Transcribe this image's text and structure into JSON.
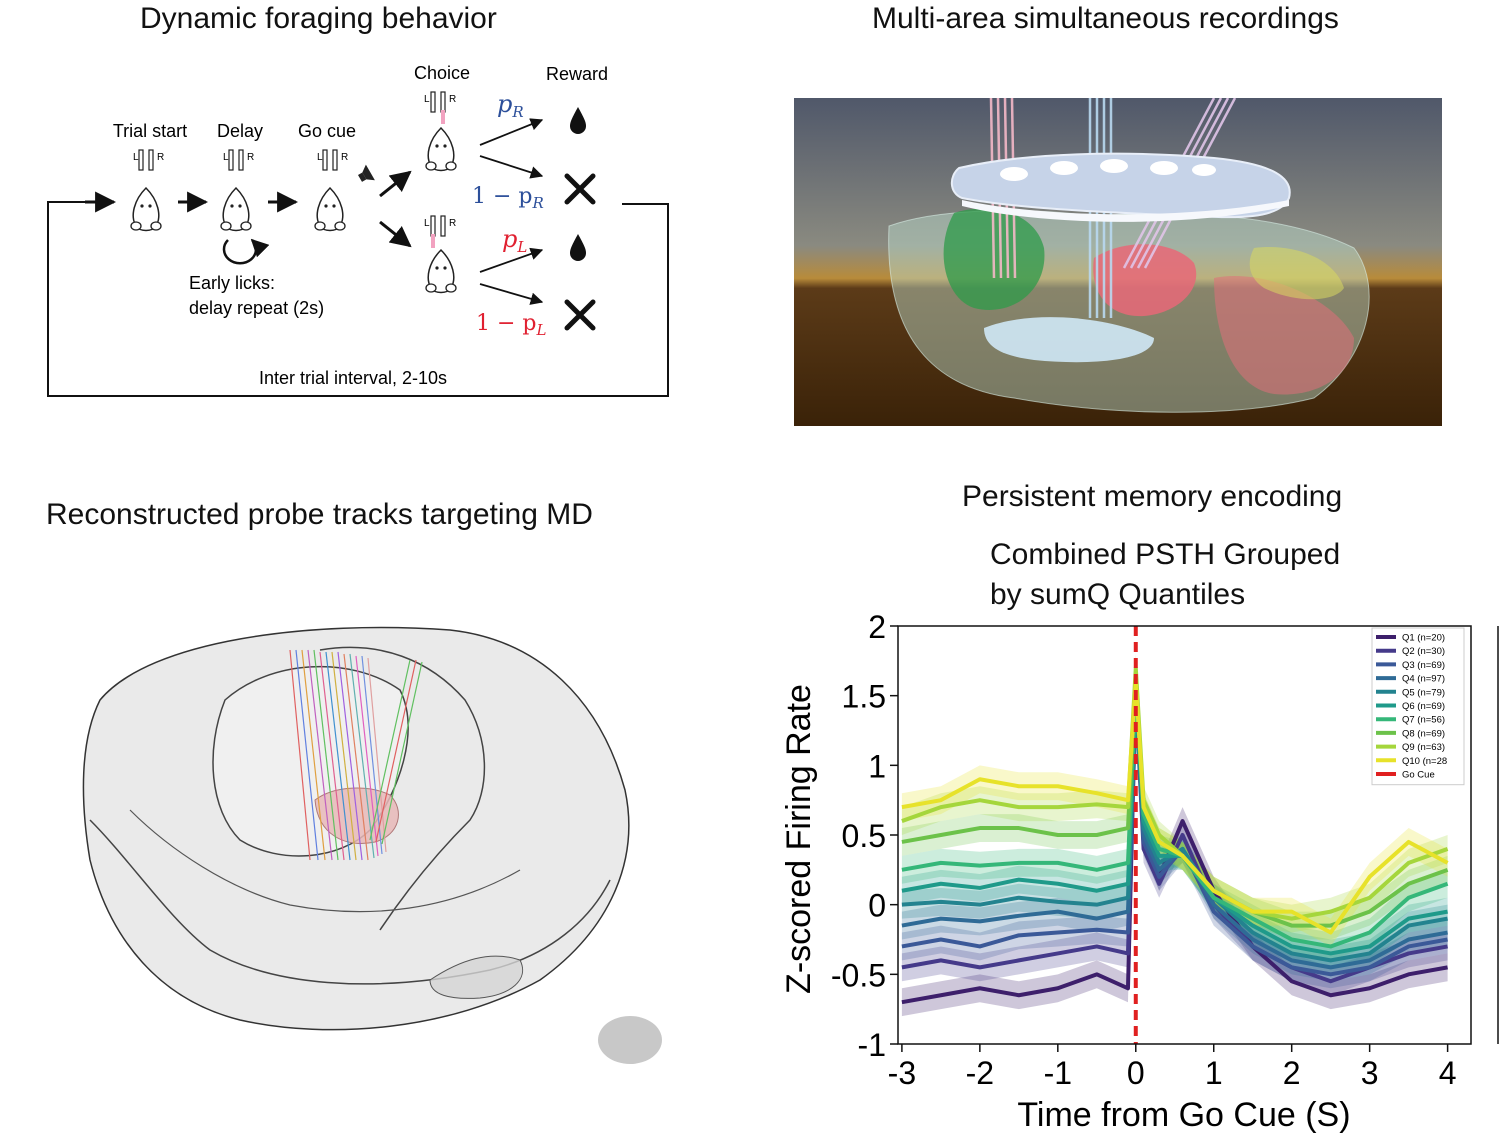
{
  "panels": {
    "behavior": {
      "title": "Dynamic foraging behavior",
      "stages": [
        "Trial start",
        "Delay",
        "Go cue"
      ],
      "choice_label": "Choice",
      "reward_label": "Reward",
      "spout_left": "L",
      "spout_right": "R",
      "early_licks_line1": "Early licks:",
      "early_licks_line2": "delay repeat (2s)",
      "iti": "Inter trial interval, 2-10s",
      "p_r_symbol": "p",
      "p_r_sub": "R",
      "one_minus_pr": "1 − p",
      "p_l_symbol": "p",
      "p_l_sub": "L",
      "one_minus_pl": "1 − p",
      "color_right": "#2c4f9a",
      "color_left": "#e02030"
    },
    "recording": {
      "title": "Multi-area simultaneous recordings"
    },
    "probe": {
      "title": "Reconstructed probe tracks targeting MD"
    },
    "psth": {
      "title": "Persistent memory encoding",
      "subtitle_line1": "Combined PSTH Grouped",
      "subtitle_line2": "by sumQ Quantiles"
    }
  },
  "chart_data": {
    "type": "line",
    "title": "Combined PSTH Grouped by sumQ Quantiles",
    "xlabel": "Time from Go Cue (S)",
    "ylabel": "Z-scored Firing Rate",
    "xlim": [
      -3.05,
      4.3
    ],
    "ylim": [
      -1,
      2
    ],
    "xticks": [
      "-3",
      "-2",
      "-1",
      "0",
      "1",
      "2",
      "3",
      "4"
    ],
    "yticks": [
      "2",
      "1.5",
      "1",
      "0.5",
      "0",
      "-0.5",
      "-1"
    ],
    "grid": false,
    "legend_position": "top-right",
    "x": [
      -3,
      -2.5,
      -2,
      -1.5,
      -1,
      -0.5,
      -0.1,
      0,
      0.1,
      0.3,
      0.6,
      1,
      1.5,
      2,
      2.5,
      3,
      3.5,
      4
    ],
    "series": [
      {
        "name": "Q1 (n=20)",
        "color": "#3d1f6b",
        "values": [
          -0.7,
          -0.65,
          -0.6,
          -0.65,
          -0.6,
          -0.5,
          -0.6,
          1.6,
          0.5,
          0.2,
          0.6,
          0.1,
          -0.3,
          -0.55,
          -0.65,
          -0.6,
          -0.5,
          -0.45
        ]
      },
      {
        "name": "Q2 (n=30)",
        "color": "#453a8a",
        "values": [
          -0.45,
          -0.4,
          -0.45,
          -0.4,
          -0.35,
          -0.3,
          -0.35,
          1.5,
          0.4,
          0.15,
          0.5,
          0.0,
          -0.3,
          -0.45,
          -0.55,
          -0.45,
          -0.35,
          -0.3
        ]
      },
      {
        "name": "Q3 (n=69)",
        "color": "#3b5998",
        "values": [
          -0.3,
          -0.25,
          -0.3,
          -0.22,
          -0.2,
          -0.18,
          -0.2,
          1.5,
          0.45,
          0.2,
          0.4,
          -0.05,
          -0.3,
          -0.45,
          -0.5,
          -0.45,
          -0.3,
          -0.25
        ]
      },
      {
        "name": "Q4 (n=97)",
        "color": "#2f6b96",
        "values": [
          -0.15,
          -0.1,
          -0.12,
          -0.08,
          -0.05,
          -0.1,
          -0.05,
          1.5,
          0.5,
          0.25,
          0.4,
          0.0,
          -0.25,
          -0.4,
          -0.45,
          -0.4,
          -0.25,
          -0.2
        ]
      },
      {
        "name": "Q5 (n=79)",
        "color": "#23838f",
        "values": [
          0.0,
          0.02,
          0.0,
          0.05,
          0.02,
          0.0,
          0.05,
          1.55,
          0.55,
          0.3,
          0.4,
          0.05,
          -0.2,
          -0.35,
          -0.4,
          -0.35,
          -0.15,
          -0.1
        ]
      },
      {
        "name": "Q6 (n=69)",
        "color": "#1f9a8a",
        "values": [
          0.1,
          0.15,
          0.12,
          0.18,
          0.15,
          0.1,
          0.15,
          1.55,
          0.6,
          0.35,
          0.35,
          0.05,
          -0.15,
          -0.3,
          -0.35,
          -0.3,
          -0.1,
          -0.05
        ]
      },
      {
        "name": "Q7 (n=56)",
        "color": "#35b779",
        "values": [
          0.25,
          0.3,
          0.28,
          0.3,
          0.3,
          0.25,
          0.3,
          1.6,
          0.65,
          0.4,
          0.35,
          0.05,
          -0.1,
          -0.25,
          -0.3,
          -0.2,
          0.05,
          0.15
        ]
      },
      {
        "name": "Q8 (n=69)",
        "color": "#6cc24a",
        "values": [
          0.45,
          0.5,
          0.55,
          0.55,
          0.5,
          0.5,
          0.55,
          1.65,
          0.7,
          0.45,
          0.35,
          0.1,
          -0.05,
          -0.15,
          -0.15,
          -0.05,
          0.15,
          0.25
        ]
      },
      {
        "name": "Q9 (n=63)",
        "color": "#a5d63c",
        "values": [
          0.6,
          0.7,
          0.75,
          0.7,
          0.7,
          0.72,
          0.7,
          1.7,
          0.75,
          0.5,
          0.35,
          0.1,
          -0.05,
          -0.1,
          -0.05,
          0.05,
          0.3,
          0.4
        ]
      },
      {
        "name": "Q10 (n=28",
        "color": "#e7e22a",
        "values": [
          0.7,
          0.75,
          0.9,
          0.85,
          0.85,
          0.8,
          0.75,
          1.6,
          0.7,
          0.45,
          0.35,
          0.1,
          -0.05,
          -0.05,
          -0.2,
          0.2,
          0.45,
          0.3
        ]
      }
    ],
    "annotations": [
      {
        "name": "Go Cue",
        "type": "vline",
        "x": 0,
        "color": "#e02020",
        "style": "dashed"
      }
    ]
  }
}
